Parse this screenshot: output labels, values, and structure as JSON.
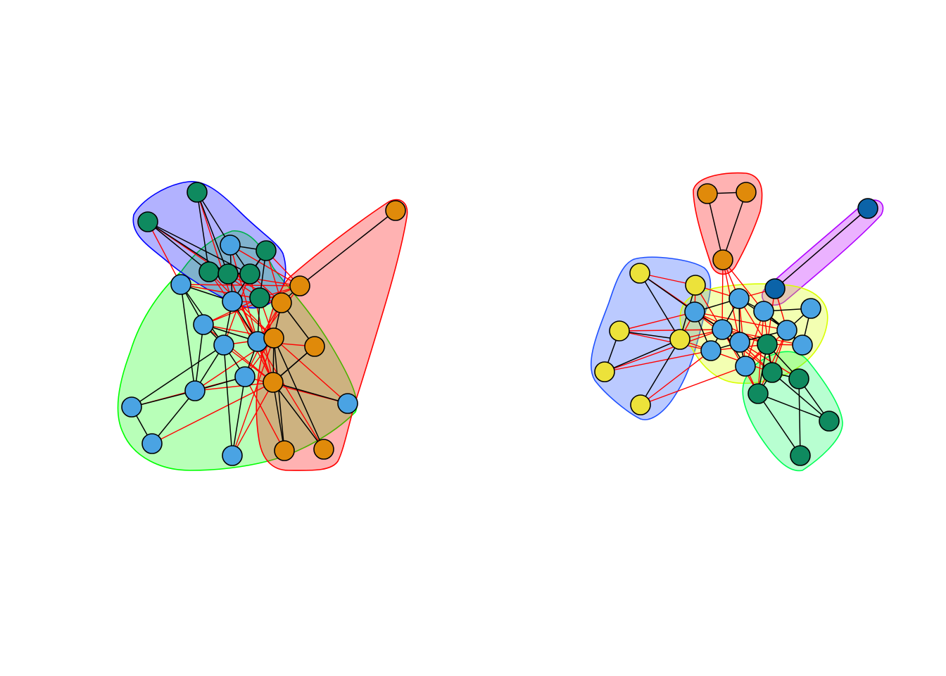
{
  "colors": {
    "node_blue": "#4aa3e3",
    "node_green": "#0f8a5f",
    "node_orange": "#e08a0a",
    "node_yellow": "#ece23a",
    "node_darkblue": "#0b63a8",
    "edge_within": "#000000",
    "edge_between": "#ff0000"
  },
  "graphs": [
    {
      "id": "left-network",
      "communities": [
        {
          "name": "green",
          "stroke": "#00ff00",
          "fill": "rgba(0,255,0,0.28)"
        },
        {
          "name": "blue",
          "stroke": "#0000ff",
          "fill": "rgba(0,0,255,0.30)"
        },
        {
          "name": "red",
          "stroke": "#ff0000",
          "fill": "rgba(255,0,0,0.30)"
        }
      ],
      "node_count": 30
    },
    {
      "id": "right-network",
      "communities": [
        {
          "name": "red",
          "stroke": "#ff0000",
          "fill": "rgba(255,0,0,0.30)"
        },
        {
          "name": "purple",
          "stroke": "#b000ff",
          "fill": "rgba(190,0,255,0.30)"
        },
        {
          "name": "blue",
          "stroke": "#1e50ff",
          "fill": "rgba(30,80,255,0.30)"
        },
        {
          "name": "yellow",
          "stroke": "#d9ff00",
          "fill": "rgba(215,255,0,0.30)"
        },
        {
          "name": "green",
          "stroke": "#00ff55",
          "fill": "rgba(0,255,90,0.28)"
        }
      ],
      "node_count": 29
    }
  ]
}
